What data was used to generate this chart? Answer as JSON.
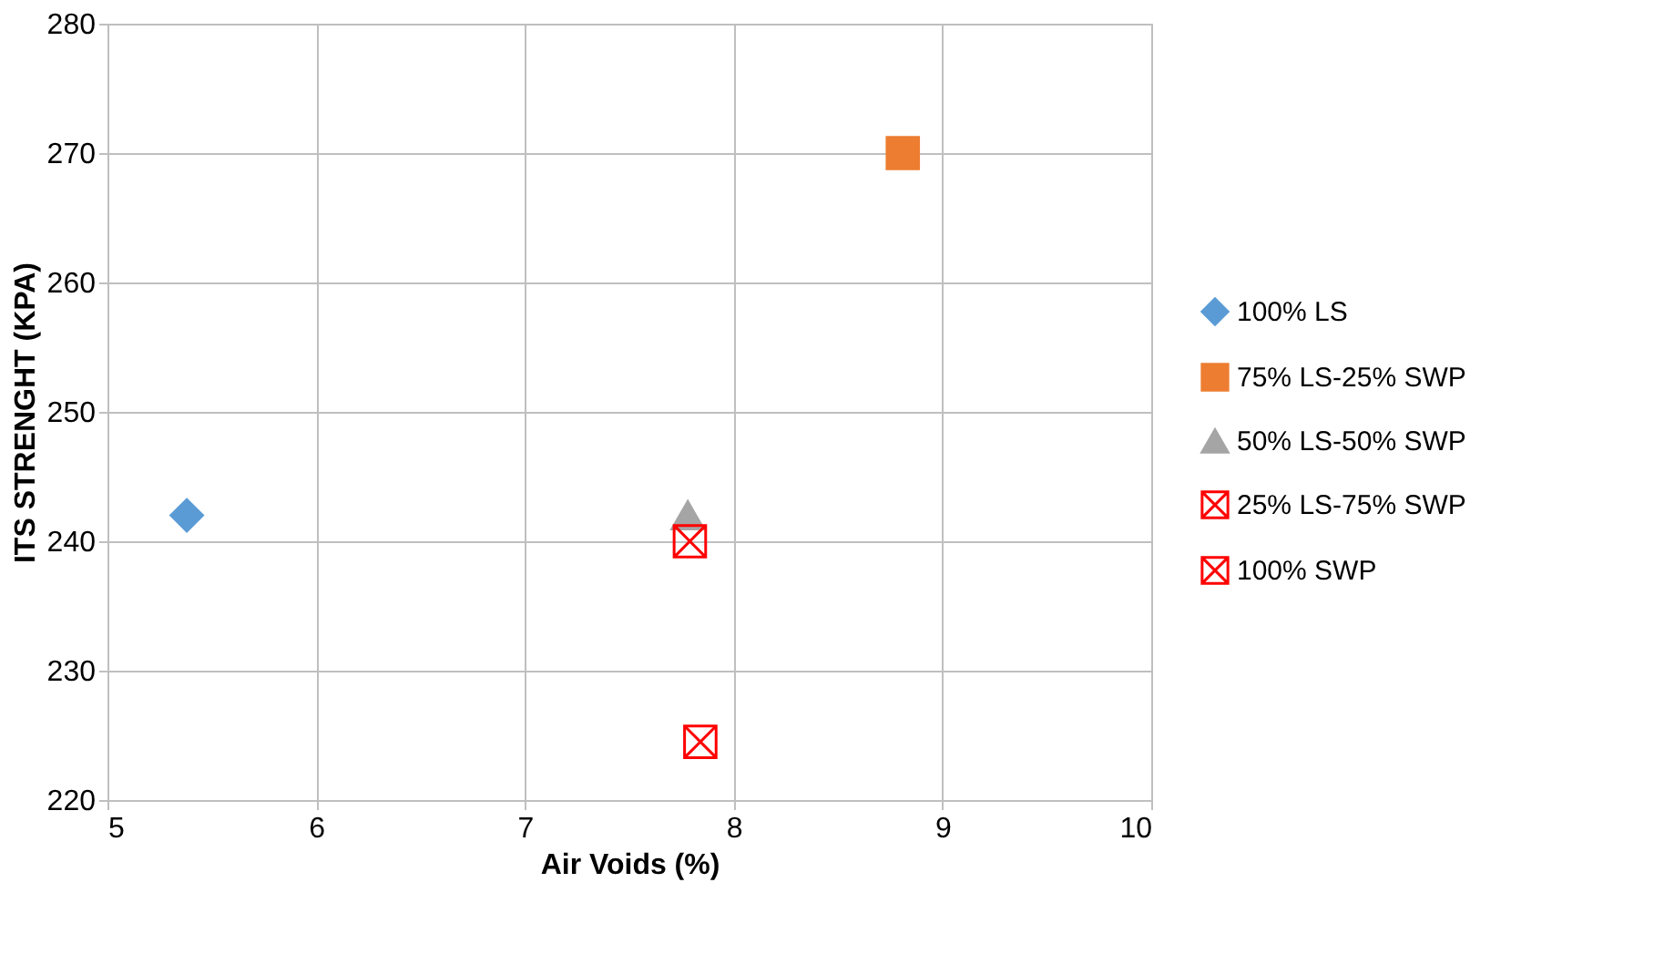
{
  "chart_data": {
    "type": "scatter",
    "xlabel": "Air Voids (%)",
    "ylabel": "ITS STRENGHT (KPA)",
    "xlim": [
      5,
      10
    ],
    "xticks": [
      5,
      6,
      7,
      8,
      9,
      10
    ],
    "ylim": [
      220,
      280
    ],
    "yticks": [
      220,
      230,
      240,
      250,
      260,
      270,
      280
    ],
    "grid": true,
    "legend": "right",
    "series": [
      {
        "name": "100% LS",
        "color": "#5b9bd5",
        "marker": "diamond",
        "x": [
          5.38
        ],
        "values": [
          242
        ]
      },
      {
        "name": "75% LS-25% SWP",
        "color": "#ed7d31",
        "marker": "square",
        "x": [
          8.81
        ],
        "values": [
          270
        ]
      },
      {
        "name": "50% LS-50% SWP",
        "color": "#a5a5a5",
        "marker": "triangle",
        "x": [
          7.78
        ],
        "values": [
          242
        ]
      },
      {
        "name": "25% LS-75% SWP",
        "color": "#ff0000",
        "marker": "cross",
        "x": [
          7.84
        ],
        "values": [
          224.5
        ]
      },
      {
        "name": "100% SWP",
        "color": "#ff0000",
        "marker": "cross",
        "x": [
          7.79
        ],
        "values": [
          240
        ]
      }
    ]
  }
}
